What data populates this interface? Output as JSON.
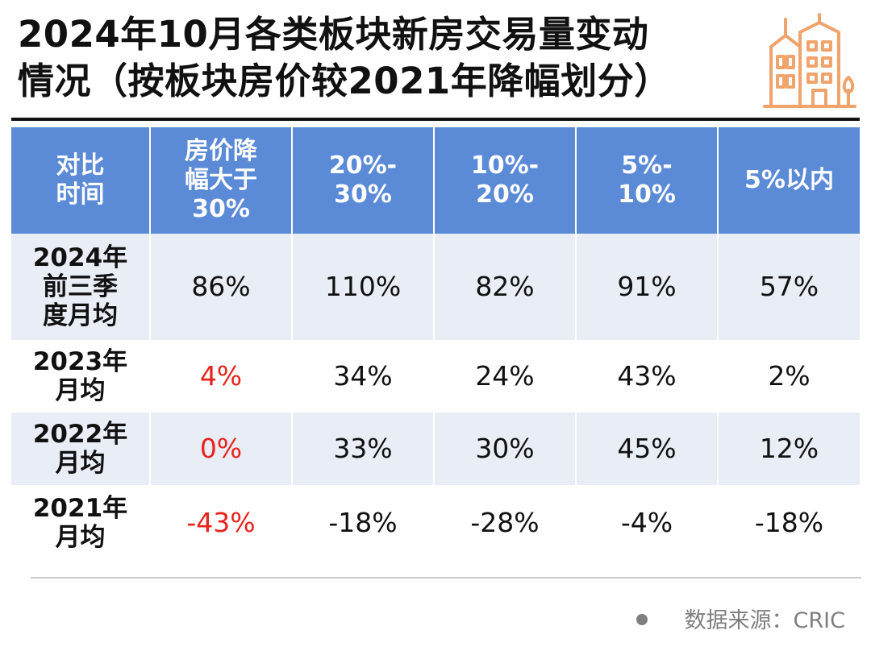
{
  "title": {
    "line1": "2024年10月各类板块新房交易量变动",
    "line2": "情况（按板块房价较2021年降幅划分）"
  },
  "logo": {
    "icon": "building-icon",
    "color": "#f0a36b"
  },
  "colors": {
    "header": "#5b8ad6",
    "band": "#e9edf6",
    "highlight": "#e8231d",
    "text": "#111111"
  },
  "chart_data": {
    "type": "table",
    "columns": [
      "对比时间",
      "房价降幅大于30%",
      "20%-30%",
      "10%-20%",
      "5%-10%",
      "5%以内"
    ],
    "rows": [
      {
        "label": "2024年前三季度月均",
        "values": [
          "86%",
          "110%",
          "82%",
          "91%",
          "57%"
        ]
      },
      {
        "label": "2023年月均",
        "values": [
          "4%",
          "34%",
          "24%",
          "43%",
          "2%"
        ]
      },
      {
        "label": "2022年月均",
        "values": [
          "0%",
          "33%",
          "30%",
          "45%",
          "12%"
        ]
      },
      {
        "label": "2021年月均",
        "values": [
          "-43%",
          "-18%",
          "-28%",
          "-4%",
          "-18%"
        ]
      }
    ]
  },
  "source": "数据来源：CRIC"
}
